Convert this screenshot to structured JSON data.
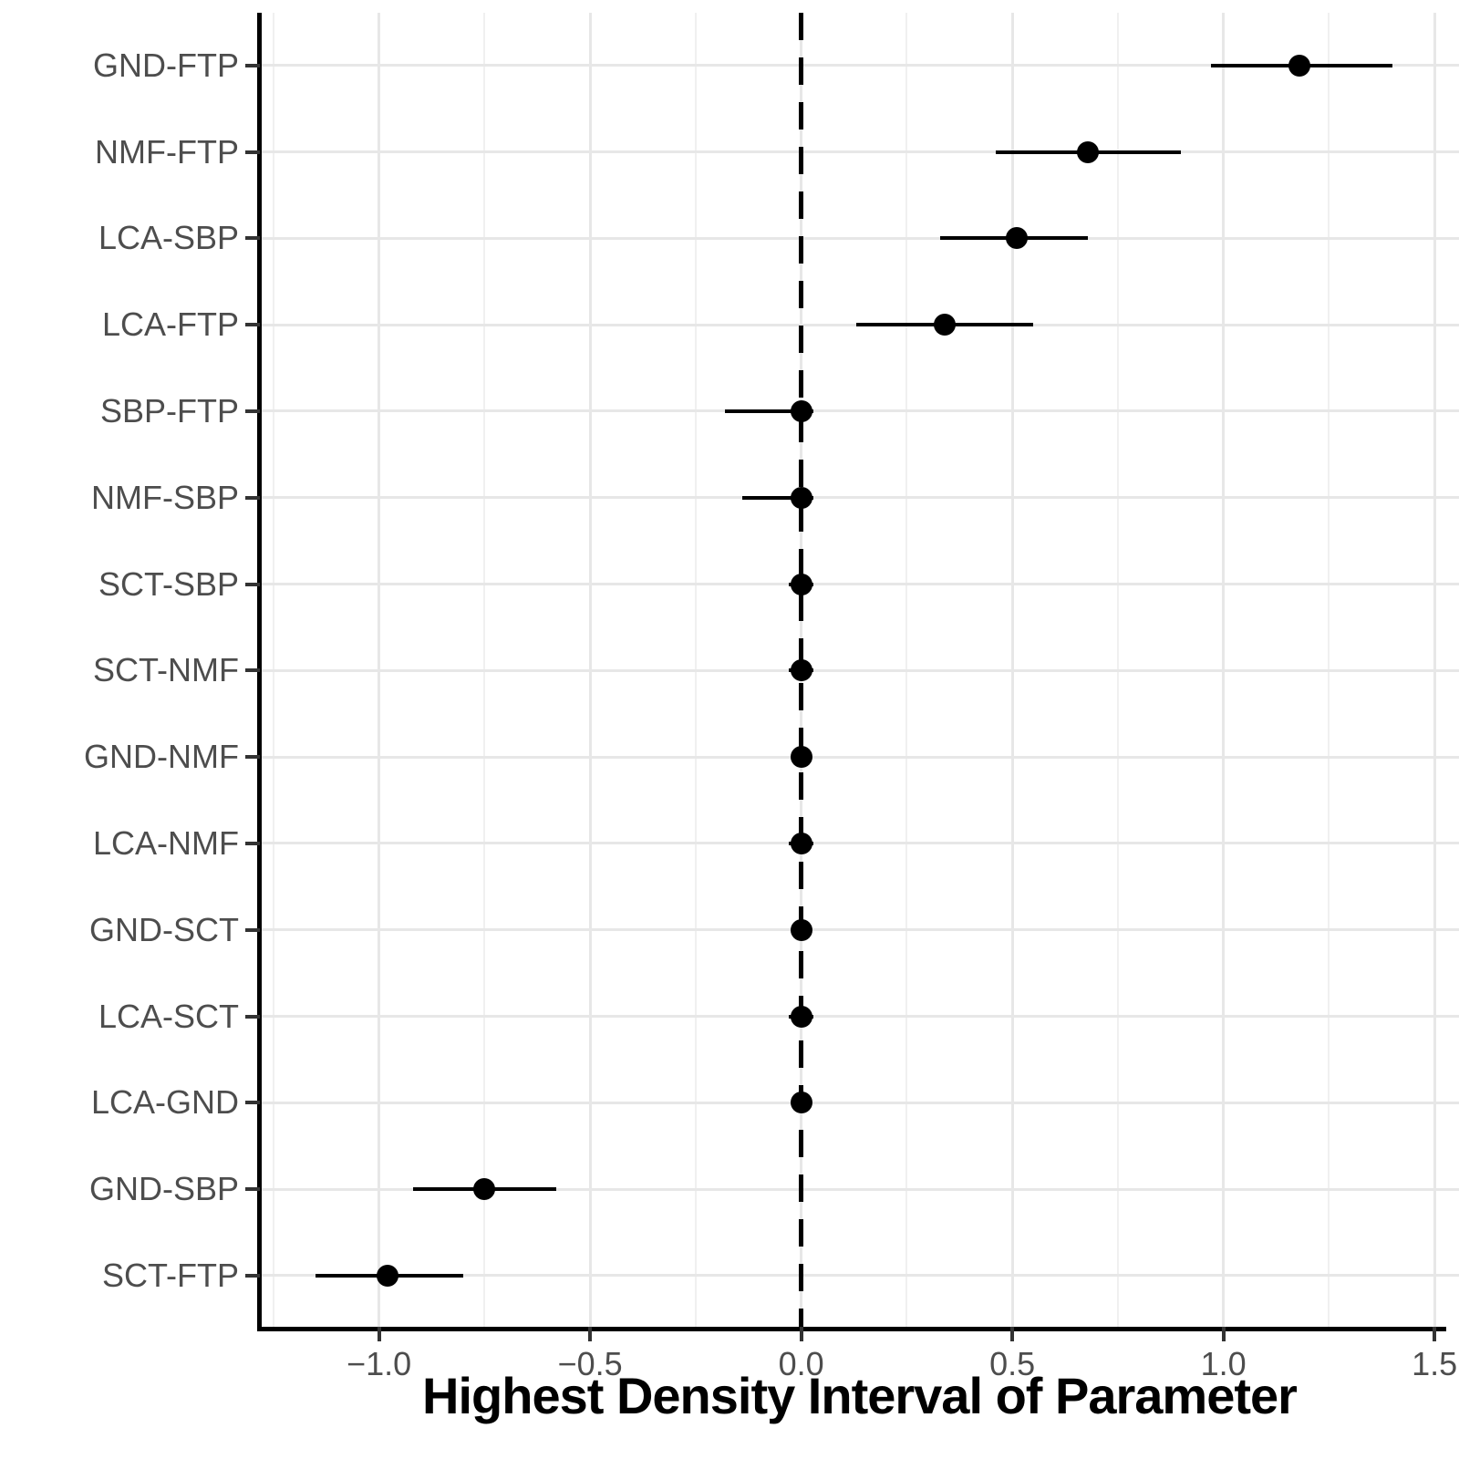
{
  "figure": {
    "xlabel": "Highest Density Interval of Parameter",
    "colors": {
      "point": "#000000",
      "interval_line": "#000000",
      "reference_line": "#000000",
      "grid_major": "#e7e7e7",
      "grid_minor": "#f0f0f0",
      "axis_line": "#000000",
      "tick_mark": "#333333",
      "axis_text": "#4d4d4d",
      "title_text": "#000000",
      "background": "#ffffff"
    }
  },
  "chart_data": {
    "type": "scatter",
    "subtype": "forest-pointinterval",
    "title": "",
    "xlabel": "Highest Density Interval of Parameter",
    "ylabel": "",
    "xlim": [
      -1.28,
      1.56
    ],
    "grid": true,
    "legend": false,
    "reference_line_x": 0.0,
    "reference_line_style": "dashed",
    "x_major_ticks": [
      -1.0,
      -0.5,
      0.0,
      0.5,
      1.0,
      1.5
    ],
    "x_tick_labels": [
      "−1.0",
      "−0.5",
      "0.0",
      "0.5",
      "1.0",
      "1.5"
    ],
    "x_minor_gridlines": [
      -1.25,
      -0.75,
      -0.25,
      0.25,
      0.75,
      1.25
    ],
    "categories": [
      "GND-FTP",
      "NMF-FTP",
      "LCA-SBP",
      "LCA-FTP",
      "SBP-FTP",
      "NMF-SBP",
      "SCT-SBP",
      "SCT-NMF",
      "GND-NMF",
      "LCA-NMF",
      "GND-SCT",
      "LCA-SCT",
      "LCA-GND",
      "GND-SBP",
      "SCT-FTP"
    ],
    "rows": [
      {
        "label": "GND-FTP",
        "estimate": 1.18,
        "lower": 0.97,
        "upper": 1.4
      },
      {
        "label": "NMF-FTP",
        "estimate": 0.68,
        "lower": 0.46,
        "upper": 0.9
      },
      {
        "label": "LCA-SBP",
        "estimate": 0.51,
        "lower": 0.33,
        "upper": 0.68
      },
      {
        "label": "LCA-FTP",
        "estimate": 0.34,
        "lower": 0.13,
        "upper": 0.55
      },
      {
        "label": "SBP-FTP",
        "estimate": 0.0,
        "lower": -0.18,
        "upper": 0.03
      },
      {
        "label": "NMF-SBP",
        "estimate": 0.0,
        "lower": -0.14,
        "upper": 0.03
      },
      {
        "label": "SCT-SBP",
        "estimate": 0.0,
        "lower": -0.03,
        "upper": 0.03
      },
      {
        "label": "SCT-NMF",
        "estimate": 0.0,
        "lower": -0.03,
        "upper": 0.03
      },
      {
        "label": "GND-NMF",
        "estimate": 0.0,
        "lower": -0.02,
        "upper": 0.02
      },
      {
        "label": "LCA-NMF",
        "estimate": 0.0,
        "lower": -0.03,
        "upper": 0.03
      },
      {
        "label": "GND-SCT",
        "estimate": 0.0,
        "lower": -0.02,
        "upper": 0.02
      },
      {
        "label": "LCA-SCT",
        "estimate": 0.0,
        "lower": -0.03,
        "upper": 0.03
      },
      {
        "label": "LCA-GND",
        "estimate": 0.0,
        "lower": -0.02,
        "upper": 0.02
      },
      {
        "label": "GND-SBP",
        "estimate": -0.75,
        "lower": -0.92,
        "upper": -0.58
      },
      {
        "label": "SCT-FTP",
        "estimate": -0.98,
        "lower": -1.15,
        "upper": -0.8
      }
    ]
  }
}
